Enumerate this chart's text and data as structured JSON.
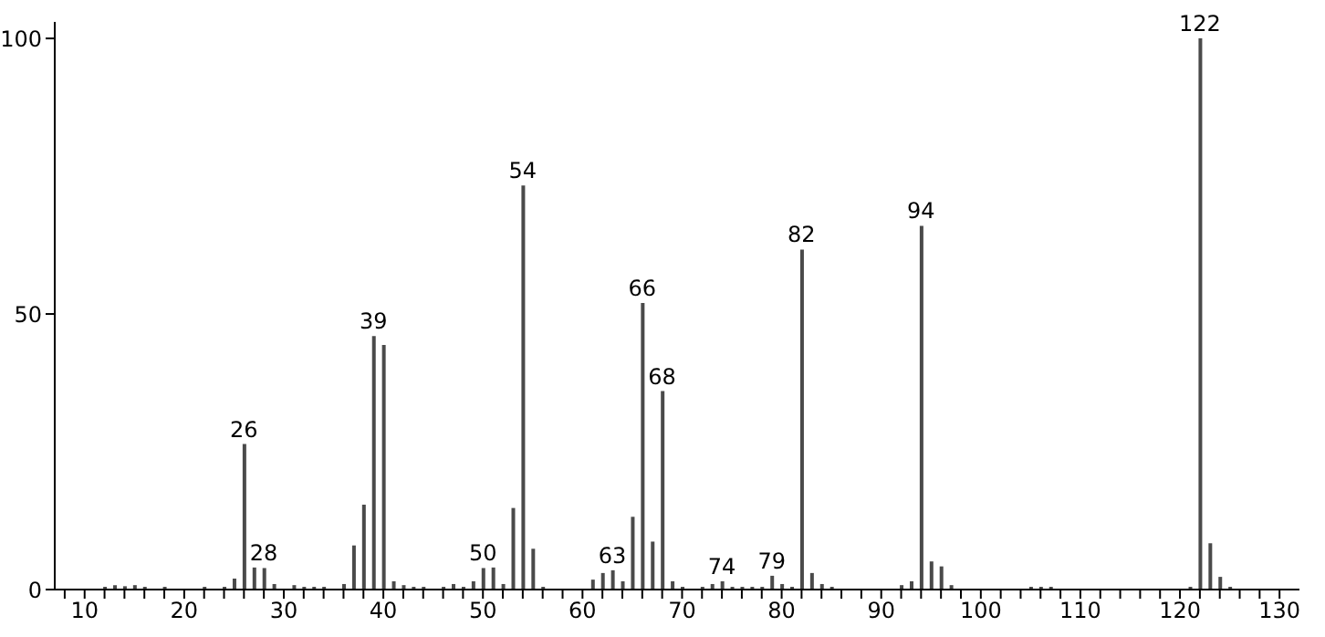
{
  "chart_data": {
    "type": "bar",
    "color": "#4a4a4a",
    "x": [
      12,
      13,
      14,
      15,
      16,
      18,
      22,
      24,
      25,
      26,
      27,
      28,
      29,
      31,
      32,
      33,
      34,
      36,
      37,
      38,
      39,
      40,
      41,
      42,
      43,
      44,
      46,
      47,
      48,
      49,
      50,
      51,
      52,
      53,
      54,
      55,
      56,
      61,
      62,
      63,
      64,
      65,
      66,
      67,
      68,
      69,
      70,
      72,
      73,
      74,
      75,
      76,
      77,
      78,
      79,
      80,
      81,
      82,
      83,
      84,
      85,
      92,
      93,
      94,
      95,
      96,
      97,
      105,
      106,
      107,
      121,
      122,
      123,
      124,
      125
    ],
    "values": [
      0.5,
      0.8,
      0.6,
      0.8,
      0.5,
      0.5,
      0.5,
      0.5,
      2,
      26.4,
      4,
      3.9,
      1,
      0.8,
      0.5,
      0.5,
      0.5,
      1,
      8,
      15.4,
      46,
      44.4,
      1.5,
      0.8,
      0.5,
      0.5,
      0.5,
      1,
      0.5,
      1.5,
      3.9,
      4,
      1,
      14.8,
      73.3,
      7.4,
      0.5,
      1.8,
      3,
      3.5,
      1.5,
      13.2,
      52,
      8.7,
      36,
      1.5,
      0.5,
      0.5,
      1,
      1.5,
      0.5,
      0.5,
      0.5,
      0.5,
      2.5,
      1,
      0.5,
      61.7,
      3,
      1,
      0.5,
      0.8,
      1.5,
      66,
      5.1,
      4.2,
      0.8,
      0.5,
      0.5,
      0.5,
      0.5,
      100,
      8.4,
      2.3,
      0.5
    ],
    "xlim": [
      7,
      132
    ],
    "ylim": [
      0,
      103
    ],
    "xticks": [
      {
        "value": 8,
        "label": null
      },
      10,
      {
        "value": 12,
        "label": null
      },
      {
        "value": 14,
        "label": null
      },
      {
        "value": 16,
        "label": null
      },
      {
        "value": 18,
        "label": null
      },
      20,
      {
        "value": 22,
        "label": null
      },
      {
        "value": 24,
        "label": null
      },
      {
        "value": 26,
        "label": null
      },
      {
        "value": 28,
        "label": null
      },
      30,
      {
        "value": 32,
        "label": null
      },
      {
        "value": 34,
        "label": null
      },
      {
        "value": 36,
        "label": null
      },
      {
        "value": 38,
        "label": null
      },
      40,
      {
        "value": 42,
        "label": null
      },
      {
        "value": 44,
        "label": null
      },
      {
        "value": 46,
        "label": null
      },
      {
        "value": 48,
        "label": null
      },
      50,
      {
        "value": 52,
        "label": null
      },
      {
        "value": 54,
        "label": null
      },
      {
        "value": 56,
        "label": null
      },
      {
        "value": 58,
        "label": null
      },
      60,
      {
        "value": 62,
        "label": null
      },
      {
        "value": 64,
        "label": null
      },
      {
        "value": 66,
        "label": null
      },
      {
        "value": 68,
        "label": null
      },
      70,
      {
        "value": 72,
        "label": null
      },
      {
        "value": 74,
        "label": null
      },
      {
        "value": 76,
        "label": null
      },
      {
        "value": 78,
        "label": null
      },
      80,
      {
        "value": 82,
        "label": null
      },
      {
        "value": 84,
        "label": null
      },
      {
        "value": 86,
        "label": null
      },
      {
        "value": 88,
        "label": null
      },
      90,
      {
        "value": 92,
        "label": null
      },
      {
        "value": 94,
        "label": null
      },
      {
        "value": 96,
        "label": null
      },
      {
        "value": 98,
        "label": null
      },
      100,
      {
        "value": 102,
        "label": null
      },
      {
        "value": 104,
        "label": null
      },
      {
        "value": 106,
        "label": null
      },
      {
        "value": 108,
        "label": null
      },
      110,
      {
        "value": 112,
        "label": null
      },
      {
        "value": 114,
        "label": null
      },
      {
        "value": 116,
        "label": null
      },
      {
        "value": 118,
        "label": null
      },
      120,
      {
        "value": 122,
        "label": null
      },
      {
        "value": 124,
        "label": null
      },
      {
        "value": 126,
        "label": null
      },
      {
        "value": 128,
        "label": null
      },
      130
    ],
    "yticks": [
      0,
      50,
      100
    ],
    "annotations": [
      {
        "text": "26",
        "x": 26,
        "y": 26.4
      },
      {
        "text": "28",
        "x": 28,
        "y": 3.9
      },
      {
        "text": "39",
        "x": 39,
        "y": 46
      },
      {
        "text": "50",
        "x": 50,
        "y": 3.9
      },
      {
        "text": "54",
        "x": 54,
        "y": 73.3
      },
      {
        "text": "63",
        "x": 63,
        "y": 3.5
      },
      {
        "text": "66",
        "x": 66,
        "y": 52
      },
      {
        "text": "68",
        "x": 68,
        "y": 36
      },
      {
        "text": "74",
        "x": 74,
        "y": 1.5
      },
      {
        "text": "79",
        "x": 79,
        "y": 2.5
      },
      {
        "text": "82",
        "x": 82,
        "y": 61.7
      },
      {
        "text": "94",
        "x": 94,
        "y": 66
      },
      {
        "text": "122",
        "x": 122,
        "y": 100
      }
    ]
  }
}
